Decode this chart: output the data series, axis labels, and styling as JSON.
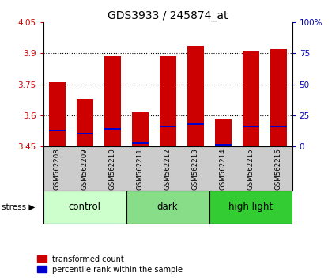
{
  "title": "GDS3933 / 245874_at",
  "samples": [
    "GSM562208",
    "GSM562209",
    "GSM562210",
    "GSM562211",
    "GSM562212",
    "GSM562213",
    "GSM562214",
    "GSM562215",
    "GSM562216"
  ],
  "groups": [
    {
      "name": "control",
      "color": "#ccffcc",
      "samples": [
        0,
        1,
        2
      ]
    },
    {
      "name": "dark",
      "color": "#88dd88",
      "samples": [
        3,
        4,
        5
      ]
    },
    {
      "name": "high light",
      "color": "#33cc33",
      "samples": [
        6,
        7,
        8
      ]
    }
  ],
  "baseline": 3.45,
  "ylim_left": [
    3.45,
    4.05
  ],
  "ylim_right": [
    0,
    100
  ],
  "yticks_left": [
    3.45,
    3.6,
    3.75,
    3.9,
    4.05
  ],
  "yticks_right": [
    0,
    25,
    50,
    75,
    100
  ],
  "red_values": [
    3.76,
    3.68,
    3.885,
    3.615,
    3.885,
    3.935,
    3.585,
    3.91,
    3.92
  ],
  "blue_values": [
    3.525,
    3.51,
    3.535,
    3.463,
    3.545,
    3.555,
    3.455,
    3.545,
    3.545
  ],
  "bar_color_red": "#cc0000",
  "bar_color_blue": "#0000cc",
  "bar_width": 0.6,
  "left_tick_color": "#cc0000",
  "right_tick_color": "#0000bb",
  "grid_color": "black",
  "title_fontsize": 10,
  "stress_label": "stress",
  "legend_red": "transformed count",
  "legend_blue": "percentile rank within the sample",
  "tick_area_color": "#cccccc",
  "group_label_fontsize": 8.5
}
